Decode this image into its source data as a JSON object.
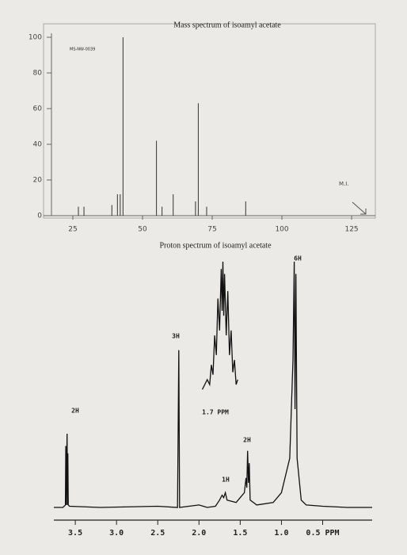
{
  "chart_data": [
    {
      "type": "bar",
      "title": "Mass spectrum of isoamyl acetate",
      "code": "MS-NW-0039",
      "annotation": "M.I.",
      "x": [
        27,
        29,
        39,
        41,
        42,
        43,
        55,
        57,
        61,
        69,
        70,
        73,
        87
      ],
      "values": [
        5,
        5,
        6,
        12,
        12,
        100,
        42,
        5,
        12,
        8,
        63,
        5,
        8
      ],
      "color": "#333333",
      "xlim": [
        14.5,
        133.5
      ],
      "xticks": [
        25,
        50,
        75,
        100,
        125
      ],
      "ylim": [
        0,
        100
      ],
      "yticks": [
        0,
        20,
        40,
        60,
        80,
        100
      ]
    },
    {
      "type": "line",
      "title": "Proton spectrum of isoamyl acetate",
      "annotations": [
        "2H",
        "3H",
        "1.7 PPM",
        "2H",
        "1H",
        "6H"
      ],
      "xlim": [
        3.76,
        -0.1
      ],
      "xticks": [
        3.5,
        {
          "value": 3,
          "label": "3.0"
        },
        2.5,
        {
          "value": 2,
          "label": "2.0"
        },
        1.5,
        {
          "value": 1,
          "label": "1.0"
        },
        {
          "value": 0.5,
          "label": "0.5 PPM"
        }
      ],
      "ylim": [
        0,
        100
      ],
      "series": [
        {
          "color": "#111111",
          "x": [
            3.76,
            3.65,
            3.62,
            3.615,
            3.61,
            3.6,
            3.595,
            3.59,
            3.585,
            3.57,
            3.2,
            2.5,
            2.26,
            2.245,
            2.235,
            2.0,
            1.9,
            1.8,
            1.75,
            1.72,
            1.7,
            1.68,
            1.66,
            1.55,
            1.5,
            1.45,
            1.43,
            1.42,
            1.41,
            1.4,
            1.39,
            1.38,
            1.3,
            1.1,
            1.0,
            0.9,
            0.86,
            0.845,
            0.835,
            0.825,
            0.81,
            0.76,
            0.7,
            0.5,
            0.2,
            -0.1
          ],
          "values": [
            0,
            0,
            1,
            25,
            1,
            30,
            1,
            22,
            1,
            0.5,
            0,
            0.5,
            0,
            64,
            0,
            1,
            0,
            0.5,
            3,
            5,
            4,
            6,
            3,
            2,
            4,
            6,
            12,
            8,
            23,
            10,
            18,
            3,
            1,
            2,
            6,
            20,
            60,
            100,
            40,
            95,
            20,
            3,
            1,
            0.5,
            0,
            0
          ]
        },
        {
          "color": "#111111",
          "x": [
            1.96,
            1.93,
            1.9,
            1.87,
            1.85,
            1.83,
            1.81,
            1.79,
            1.77,
            1.75,
            1.73,
            1.72,
            1.71,
            1.7,
            1.69,
            1.67,
            1.65,
            1.63,
            1.61,
            1.59,
            1.57,
            1.55,
            1.53
          ],
          "values": [
            48,
            50,
            52,
            50,
            58,
            54,
            70,
            62,
            85,
            72,
            97,
            80,
            100,
            78,
            95,
            70,
            88,
            62,
            72,
            55,
            60,
            50,
            52
          ]
        }
      ]
    }
  ]
}
